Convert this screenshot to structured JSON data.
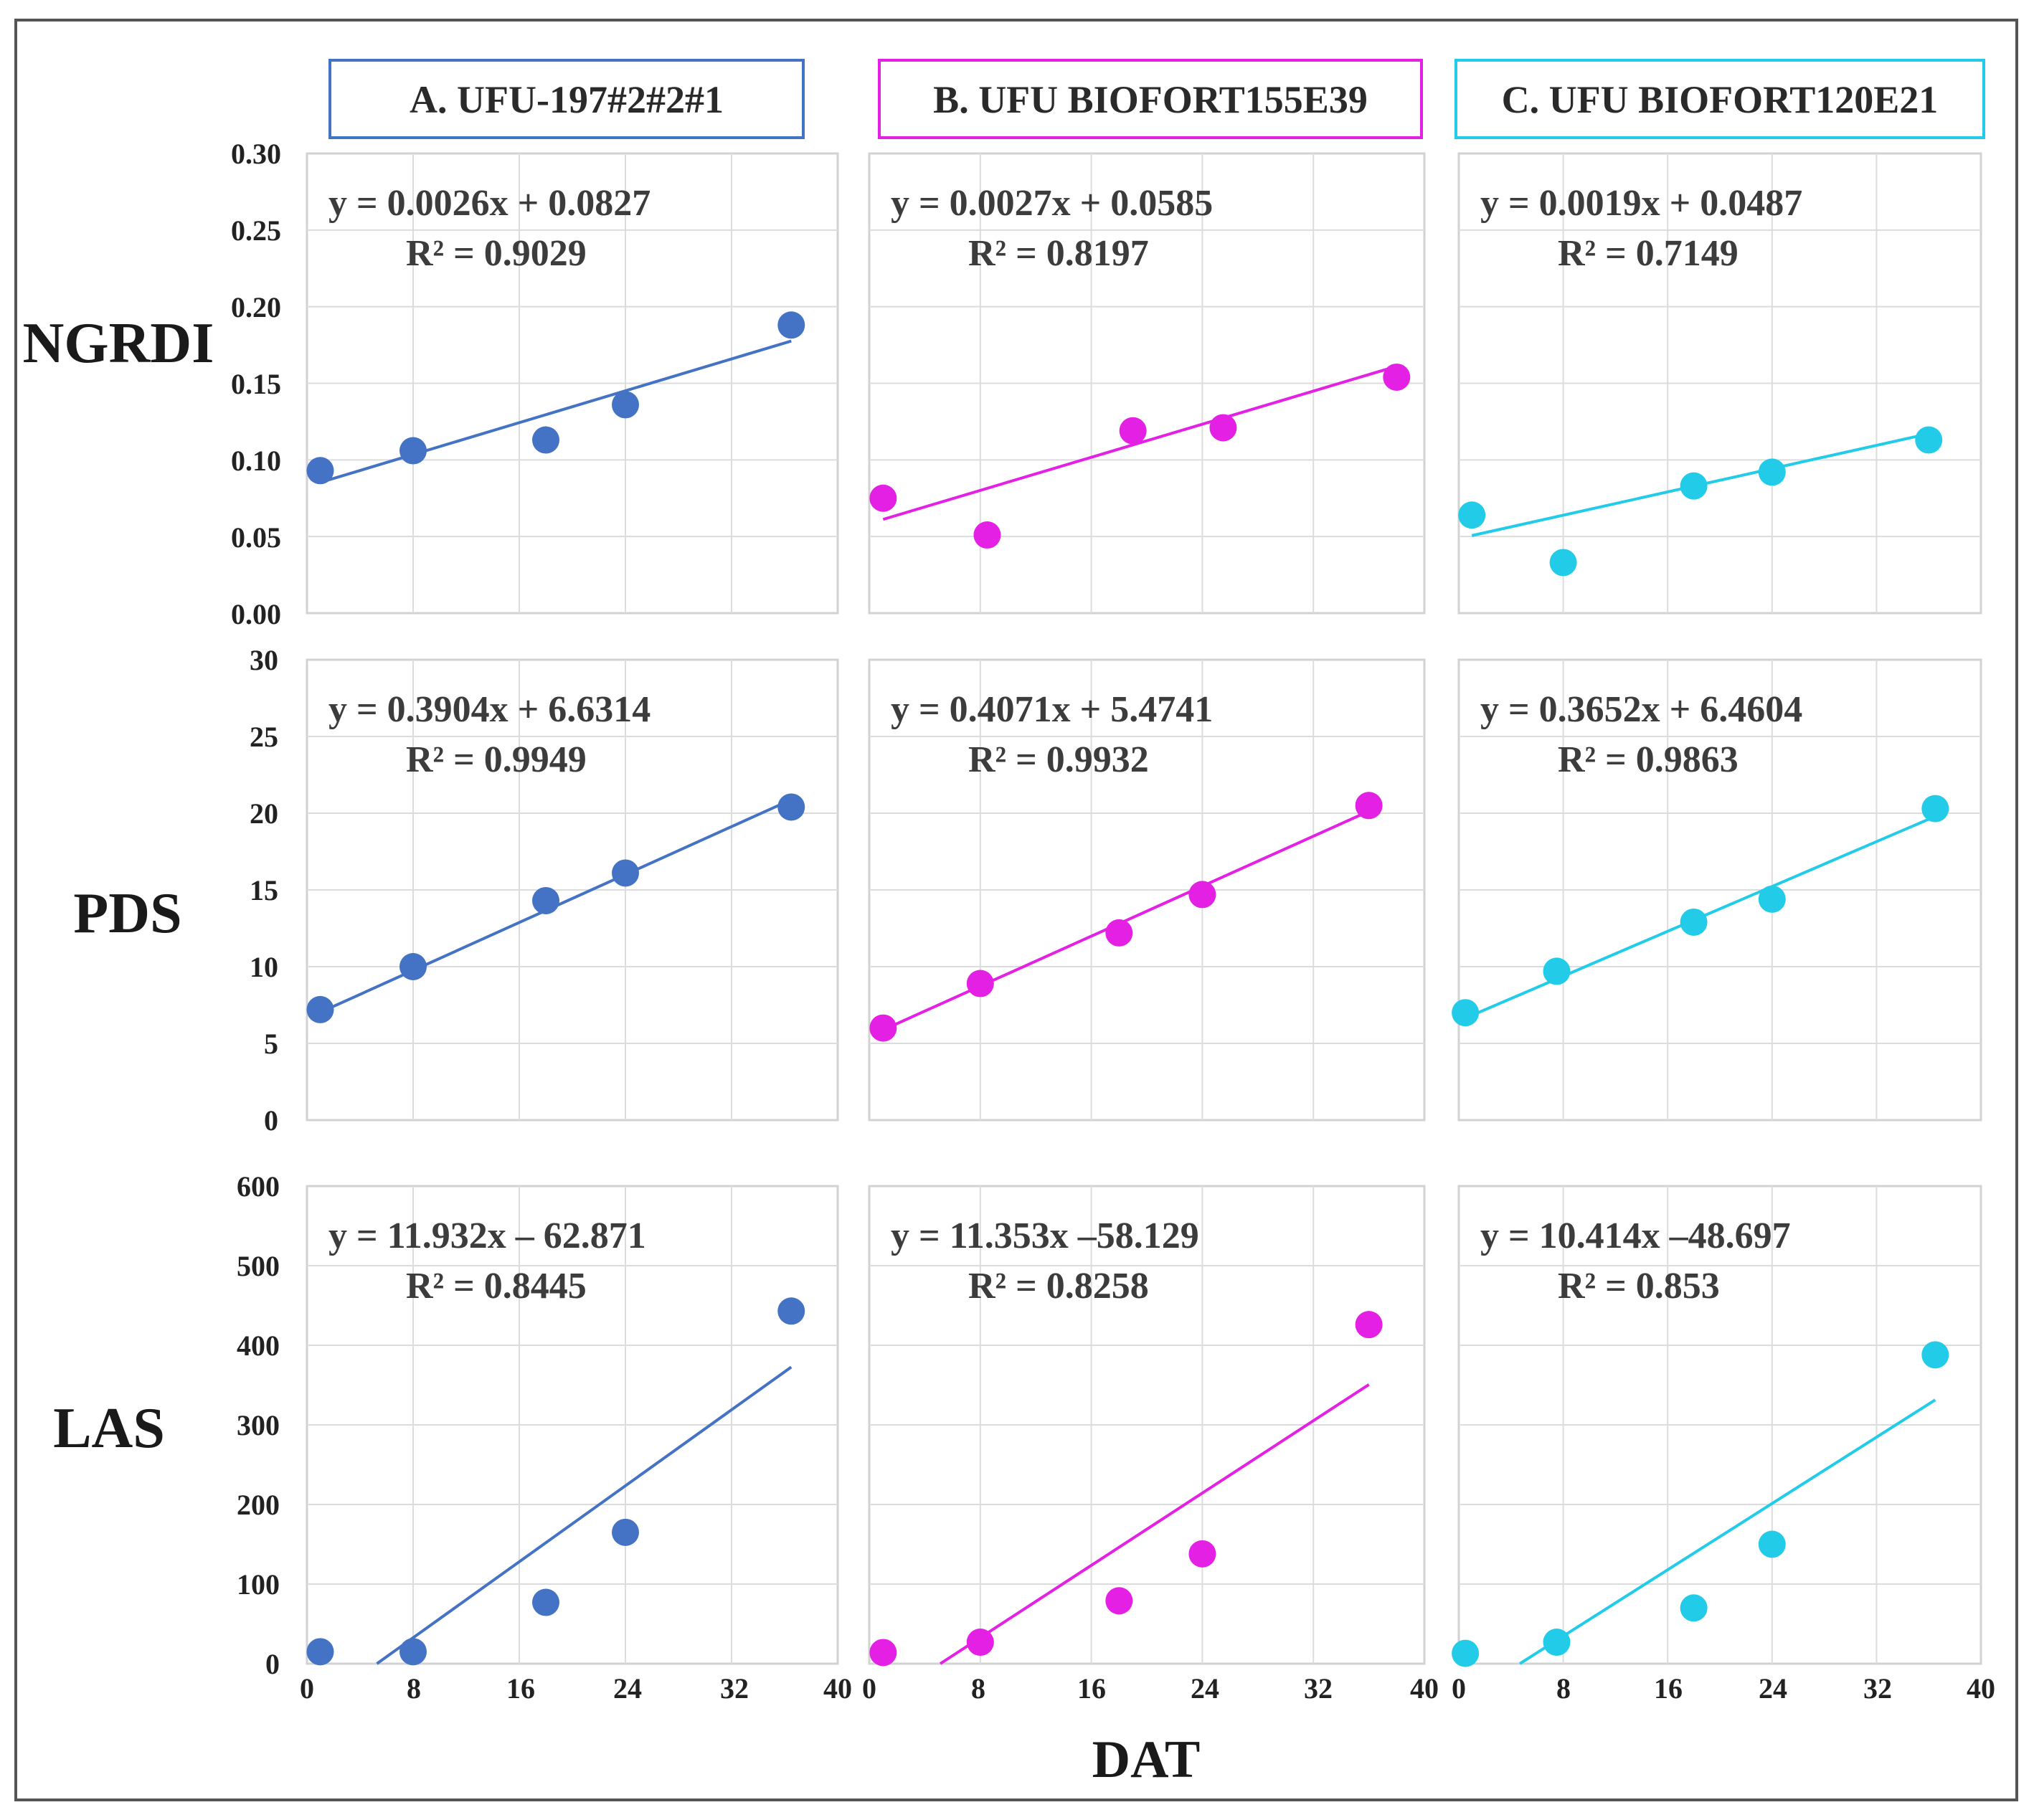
{
  "x_axis_title": "DAT",
  "columns": [
    {
      "title": "A. UFU-197#2#2#1",
      "color": "#4472C4"
    },
    {
      "title": "B. UFU BIOFORT155E39",
      "color": "#E520E5"
    },
    {
      "title": "C. UFU BIOFORT120E21",
      "color": "#22CCE8"
    }
  ],
  "rows": [
    {
      "label": "NGRDI",
      "yticks": [
        "0.00",
        "0.05",
        "0.10",
        "0.15",
        "0.20",
        "0.25",
        "0.30"
      ]
    },
    {
      "label": "PDS",
      "yticks": [
        "0",
        "5",
        "10",
        "15",
        "20",
        "25",
        "30"
      ]
    },
    {
      "label": "LAS",
      "yticks": [
        "0",
        "100",
        "200",
        "300",
        "400",
        "500",
        "600"
      ]
    }
  ],
  "xticks": [
    "0",
    "8",
    "16",
    "24",
    "32",
    "40"
  ],
  "chart_data": [
    {
      "type": "scatter",
      "row": "NGRDI",
      "column": "A. UFU-197#2#2#1",
      "x": [
        1,
        8,
        18,
        24,
        36.5
      ],
      "y": [
        0.093,
        0.106,
        0.113,
        0.136,
        0.188
      ],
      "trendline": {
        "x_start": 1,
        "x_end": 36.5,
        "slope": 0.0026,
        "intercept": 0.0827
      },
      "equation": "y = 0.0026x + 0.0827",
      "r2": "R² = 0.9029",
      "xlim": [
        0,
        40
      ],
      "ylim": [
        0,
        0.3
      ],
      "xlabel": "DAT",
      "ylabel": "NGRDI"
    },
    {
      "type": "scatter",
      "row": "NGRDI",
      "column": "B. UFU BIOFORT155E39",
      "x": [
        1,
        8.5,
        19,
        25.5,
        38
      ],
      "y": [
        0.075,
        0.051,
        0.119,
        0.121,
        0.154
      ],
      "trendline": {
        "x_start": 1,
        "x_end": 38,
        "slope": 0.0027,
        "intercept": 0.0585
      },
      "equation": "y = 0.0027x + 0.0585",
      "r2": "R² = 0.8197",
      "xlim": [
        0,
        40
      ],
      "ylim": [
        0,
        0.3
      ],
      "xlabel": "DAT",
      "ylabel": "NGRDI"
    },
    {
      "type": "scatter",
      "row": "NGRDI",
      "column": "C. UFU BIOFORT120E21",
      "x": [
        1,
        8,
        18,
        24,
        36
      ],
      "y": [
        0.064,
        0.033,
        0.083,
        0.092,
        0.113
      ],
      "trendline": {
        "x_start": 1,
        "x_end": 36,
        "slope": 0.0019,
        "intercept": 0.0487
      },
      "equation": "y = 0.0019x + 0.0487",
      "r2": "R² = 0.7149",
      "xlim": [
        0,
        40
      ],
      "ylim": [
        0,
        0.3
      ],
      "xlabel": "DAT",
      "ylabel": "NGRDI"
    },
    {
      "type": "scatter",
      "row": "PDS",
      "column": "A. UFU-197#2#2#1",
      "x": [
        1,
        8,
        18,
        24,
        36.5
      ],
      "y": [
        7.2,
        10.0,
        14.3,
        16.1,
        20.4
      ],
      "trendline": {
        "x_start": 1,
        "x_end": 36.5,
        "slope": 0.3904,
        "intercept": 6.6314
      },
      "equation": "y = 0.3904x + 6.6314",
      "r2": "R² = 0.9949",
      "xlim": [
        0,
        40
      ],
      "ylim": [
        0,
        30
      ],
      "xlabel": "DAT",
      "ylabel": "PDS"
    },
    {
      "type": "scatter",
      "row": "PDS",
      "column": "B. UFU BIOFORT155E39",
      "x": [
        1,
        8,
        18,
        24,
        36
      ],
      "y": [
        6.0,
        8.9,
        12.2,
        14.7,
        20.5
      ],
      "trendline": {
        "x_start": 1,
        "x_end": 36,
        "slope": 0.4071,
        "intercept": 5.4741
      },
      "equation": "y = 0.4071x + 5.4741",
      "r2": "R² = 0.9932",
      "xlim": [
        0,
        40
      ],
      "ylim": [
        0,
        30
      ],
      "xlabel": "DAT",
      "ylabel": "PDS"
    },
    {
      "type": "scatter",
      "row": "PDS",
      "column": "C. UFU BIOFORT120E21",
      "x": [
        0.5,
        7.5,
        18,
        24,
        36.5
      ],
      "y": [
        7.0,
        9.7,
        12.9,
        14.4,
        20.3
      ],
      "trendline": {
        "x_start": 0.5,
        "x_end": 36.5,
        "slope": 0.3652,
        "intercept": 6.4604
      },
      "equation": "y = 0.3652x + 6.4604",
      "r2": "R² = 0.9863",
      "xlim": [
        0,
        40
      ],
      "ylim": [
        0,
        30
      ],
      "xlabel": "DAT",
      "ylabel": "PDS"
    },
    {
      "type": "scatter",
      "row": "LAS",
      "column": "A. UFU-197#2#2#1",
      "x": [
        1,
        8,
        18,
        24,
        36.5
      ],
      "y": [
        15,
        15,
        77,
        165,
        443
      ],
      "trendline": {
        "x_start": 5.27,
        "x_end": 36.5,
        "slope": 11.932,
        "intercept": -62.871
      },
      "equation": "y = 11.932x – 62.871",
      "r2": "R² = 0.8445",
      "xlim": [
        0,
        40
      ],
      "ylim": [
        0,
        600
      ],
      "xlabel": "DAT",
      "ylabel": "LAS"
    },
    {
      "type": "scatter",
      "row": "LAS",
      "column": "B. UFU BIOFORT155E39",
      "x": [
        1,
        8,
        18,
        24,
        36
      ],
      "y": [
        14,
        27,
        79,
        138,
        426
      ],
      "trendline": {
        "x_start": 5.12,
        "x_end": 36,
        "slope": 11.353,
        "intercept": -58.129
      },
      "equation": "y = 11.353x –58.129",
      "r2": "R² = 0.8258",
      "xlim": [
        0,
        40
      ],
      "ylim": [
        0,
        600
      ],
      "xlabel": "DAT",
      "ylabel": "LAS"
    },
    {
      "type": "scatter",
      "row": "LAS",
      "column": "C. UFU BIOFORT120E21",
      "x": [
        0.5,
        7.5,
        18,
        24,
        36.5
      ],
      "y": [
        13,
        27,
        70,
        150,
        388
      ],
      "trendline": {
        "x_start": 4.68,
        "x_end": 36.5,
        "slope": 10.414,
        "intercept": -48.697
      },
      "equation": "y = 10.414x –48.697",
      "r2": "R² = 0.853",
      "xlim": [
        0,
        40
      ],
      "ylim": [
        0,
        600
      ],
      "xlabel": "DAT",
      "ylabel": "LAS"
    }
  ]
}
